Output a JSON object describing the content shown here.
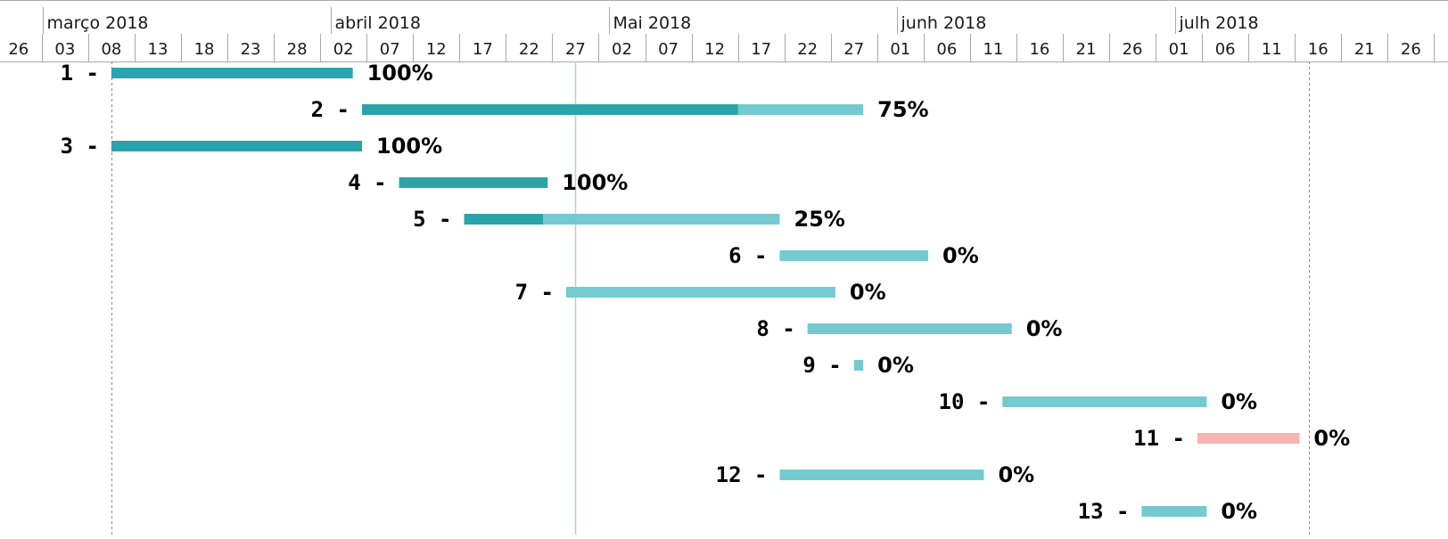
{
  "colors": {
    "done": "#2ba3aa",
    "remaining": "#74cad0",
    "milestone": "#f7b2b2",
    "today_line": "#b6d7b0",
    "marker_line": "#8c8c8c",
    "grid": "#a8a8a8",
    "text": "#000000"
  },
  "chart_data": {
    "type": "gantt",
    "timeline_start": "2018-02-24",
    "timeline_end": "2018-07-30",
    "month_labels": [
      {
        "label": "março 2018",
        "date": "2018-03-01"
      },
      {
        "label": "abril 2018",
        "date": "2018-04-01"
      },
      {
        "label": "Mai 2018",
        "date": "2018-05-01"
      },
      {
        "label": "junh 2018",
        "date": "2018-06-01"
      },
      {
        "label": "julh 2018",
        "date": "2018-07-01"
      }
    ],
    "day_ticks": [
      {
        "label": "26",
        "date": "2018-02-26"
      },
      {
        "label": "03",
        "date": "2018-03-03"
      },
      {
        "label": "08",
        "date": "2018-03-08"
      },
      {
        "label": "13",
        "date": "2018-03-13"
      },
      {
        "label": "18",
        "date": "2018-03-18"
      },
      {
        "label": "23",
        "date": "2018-03-23"
      },
      {
        "label": "28",
        "date": "2018-03-28"
      },
      {
        "label": "02",
        "date": "2018-04-02"
      },
      {
        "label": "07",
        "date": "2018-04-07"
      },
      {
        "label": "12",
        "date": "2018-04-12"
      },
      {
        "label": "17",
        "date": "2018-04-17"
      },
      {
        "label": "22",
        "date": "2018-04-22"
      },
      {
        "label": "27",
        "date": "2018-04-27"
      },
      {
        "label": "02",
        "date": "2018-05-02"
      },
      {
        "label": "07",
        "date": "2018-05-07"
      },
      {
        "label": "12",
        "date": "2018-05-12"
      },
      {
        "label": "17",
        "date": "2018-05-17"
      },
      {
        "label": "22",
        "date": "2018-05-22"
      },
      {
        "label": "27",
        "date": "2018-05-27"
      },
      {
        "label": "01",
        "date": "2018-06-01"
      },
      {
        "label": "06",
        "date": "2018-06-06"
      },
      {
        "label": "11",
        "date": "2018-06-11"
      },
      {
        "label": "16",
        "date": "2018-06-16"
      },
      {
        "label": "21",
        "date": "2018-06-21"
      },
      {
        "label": "26",
        "date": "2018-06-26"
      },
      {
        "label": "01",
        "date": "2018-07-01"
      },
      {
        "label": "06",
        "date": "2018-07-06"
      },
      {
        "label": "11",
        "date": "2018-07-11"
      },
      {
        "label": "16",
        "date": "2018-07-16"
      },
      {
        "label": "21",
        "date": "2018-07-21"
      },
      {
        "label": "26",
        "date": "2018-07-26"
      }
    ],
    "today_date": "2018-04-27",
    "markers": [
      "2018-03-08",
      "2018-07-15"
    ],
    "tasks": [
      {
        "id": "1 -",
        "start": "2018-03-08",
        "end": "2018-04-03",
        "progress": 1.0,
        "pct_label": "100%",
        "kind": "task"
      },
      {
        "id": "2 -",
        "start": "2018-04-04",
        "end": "2018-05-28",
        "progress": 0.75,
        "pct_label": "75%",
        "kind": "task"
      },
      {
        "id": "3 -",
        "start": "2018-03-08",
        "end": "2018-04-04",
        "progress": 1.0,
        "pct_label": "100%",
        "kind": "task"
      },
      {
        "id": "4 -",
        "start": "2018-04-08",
        "end": "2018-04-24",
        "progress": 1.0,
        "pct_label": "100%",
        "kind": "task"
      },
      {
        "id": "5 -",
        "start": "2018-04-15",
        "end": "2018-05-19",
        "progress": 0.25,
        "pct_label": "25%",
        "kind": "task"
      },
      {
        "id": "6 -",
        "start": "2018-05-19",
        "end": "2018-06-04",
        "progress": 0,
        "pct_label": "0%",
        "kind": "task"
      },
      {
        "id": "7 -",
        "start": "2018-04-26",
        "end": "2018-05-25",
        "progress": 0,
        "pct_label": "0%",
        "kind": "task"
      },
      {
        "id": "8 -",
        "start": "2018-05-22",
        "end": "2018-06-13",
        "progress": 0,
        "pct_label": "0%",
        "kind": "task"
      },
      {
        "id": "9 -",
        "start": "2018-05-27",
        "end": "2018-05-28",
        "progress": 0,
        "pct_label": "0%",
        "kind": "task"
      },
      {
        "id": "10 -",
        "start": "2018-06-12",
        "end": "2018-07-04",
        "progress": 0,
        "pct_label": "0%",
        "kind": "task"
      },
      {
        "id": "11 -",
        "start": "2018-07-03",
        "end": "2018-07-14",
        "progress": 0,
        "pct_label": "0%",
        "kind": "milestone"
      },
      {
        "id": "12 -",
        "start": "2018-05-19",
        "end": "2018-06-10",
        "progress": 0,
        "pct_label": "0%",
        "kind": "task"
      },
      {
        "id": "13 -",
        "start": "2018-06-27",
        "end": "2018-07-04",
        "progress": 0,
        "pct_label": "0%",
        "kind": "task"
      }
    ]
  }
}
